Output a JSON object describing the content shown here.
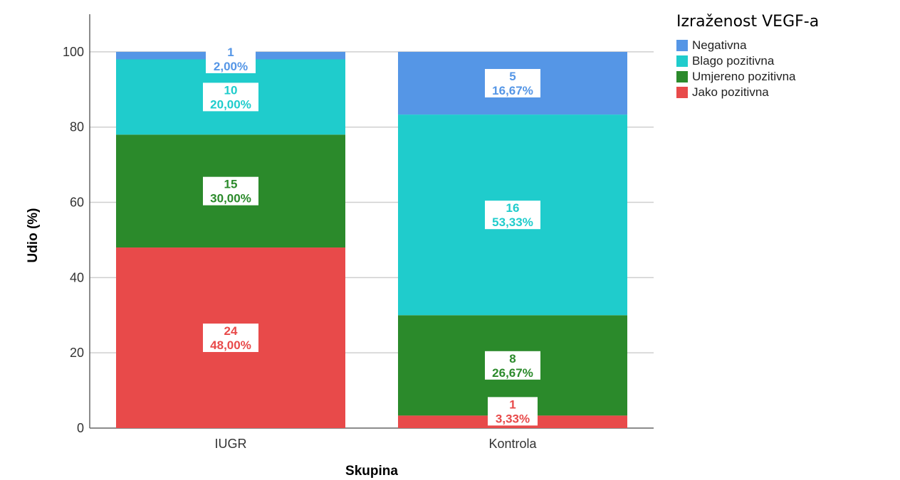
{
  "chart_data": {
    "type": "bar",
    "stacked": true,
    "categories": [
      "IUGR",
      "Kontrola"
    ],
    "xlabel": "Skupina",
    "ylabel": "Udio (%)",
    "ylim": [
      0,
      110
    ],
    "yticks": [
      0,
      20,
      40,
      60,
      80,
      100
    ],
    "grid": true,
    "legend_title": "Izraženost VEGF-a",
    "legend_position": "right",
    "series": [
      {
        "name": "Jako pozitivna",
        "color": "#e84a4a",
        "counts": [
          24,
          1
        ],
        "values": [
          48.0,
          3.33
        ],
        "labels": [
          "48,00%",
          "3,33%"
        ]
      },
      {
        "name": "Umjereno pozitivna",
        "color": "#2b8a2b",
        "counts": [
          15,
          8
        ],
        "values": [
          30.0,
          26.67
        ],
        "labels": [
          "30,00%",
          "26,67%"
        ]
      },
      {
        "name": "Blago pozitivna",
        "color": "#1fcccc",
        "counts": [
          10,
          16
        ],
        "values": [
          20.0,
          53.33
        ],
        "labels": [
          "20,00%",
          "53,33%"
        ]
      },
      {
        "name": "Negativna",
        "color": "#5596e6",
        "counts": [
          1,
          5
        ],
        "values": [
          2.0,
          16.67
        ],
        "labels": [
          "2,00%",
          "16,67%"
        ]
      }
    ],
    "legend_order": [
      "Negativna",
      "Blago pozitivna",
      "Umjereno pozitivna",
      "Jako pozitivna"
    ]
  }
}
